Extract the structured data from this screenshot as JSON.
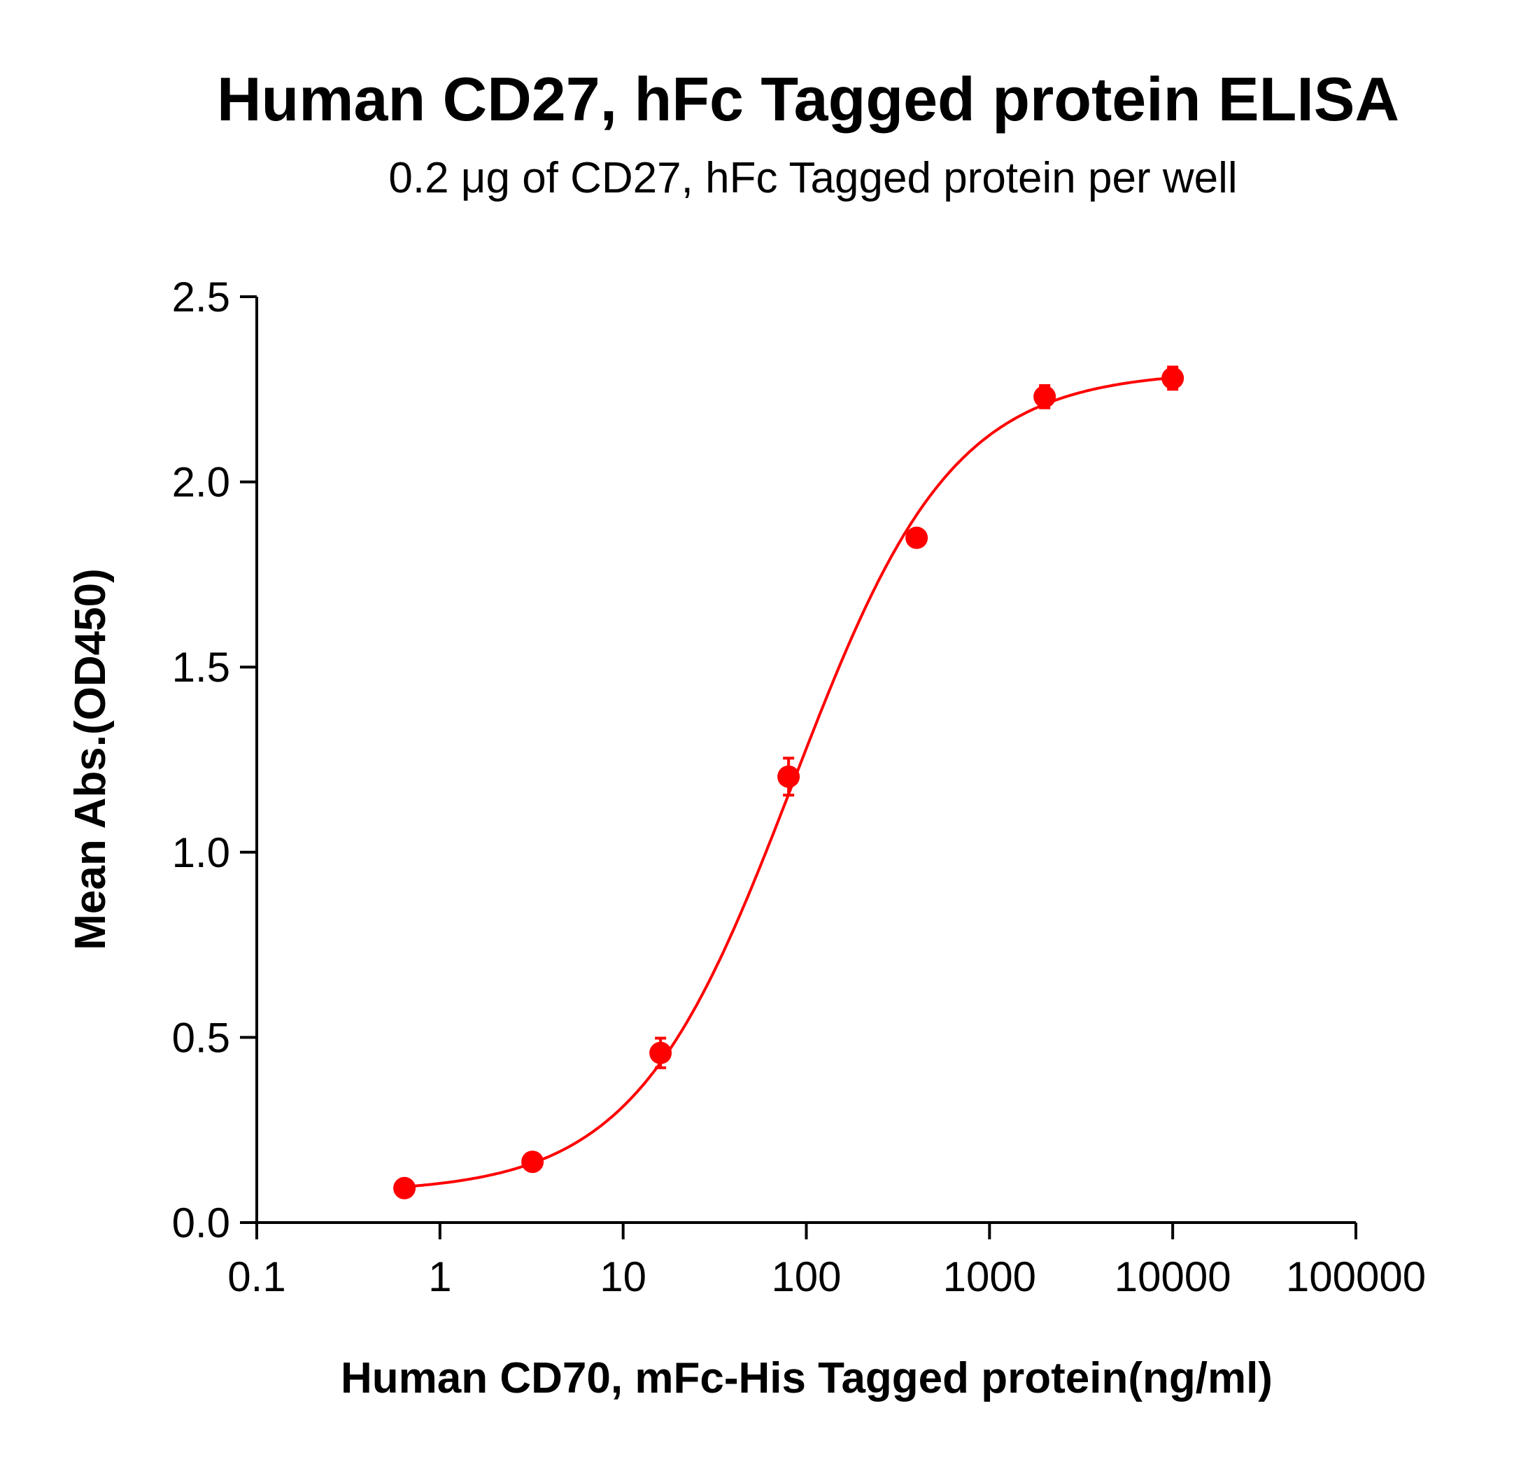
{
  "chart_data": {
    "type": "scatter",
    "title": "Human CD27, hFc Tagged protein ELISA",
    "subtitle": "0.2 μg of CD27, hFc Tagged protein per well",
    "xlabel": "Human CD70, mFc-His Tagged protein(ng/ml)",
    "ylabel": "Mean Abs.(OD450)",
    "xscale": "log",
    "xlim": [
      0.1,
      100000
    ],
    "ylim": [
      0,
      2.5
    ],
    "xticks": [
      "0.1",
      "1",
      "10",
      "100",
      "1000",
      "10000",
      "100000"
    ],
    "yticks": [
      "0.0",
      "0.5",
      "1.0",
      "1.5",
      "2.0",
      "2.5"
    ],
    "grid": false,
    "color": "#ff0000",
    "series": [
      {
        "x": [
          0.64,
          3.2,
          16,
          80,
          400,
          2000,
          10000
        ],
        "y": [
          0.093,
          0.164,
          0.458,
          1.204,
          1.849,
          2.23,
          2.28
        ],
        "error": [
          0.01,
          0.01,
          0.04,
          0.05,
          0.02,
          0.03,
          0.03
        ],
        "fit": "sigmoidal curve"
      }
    ]
  }
}
